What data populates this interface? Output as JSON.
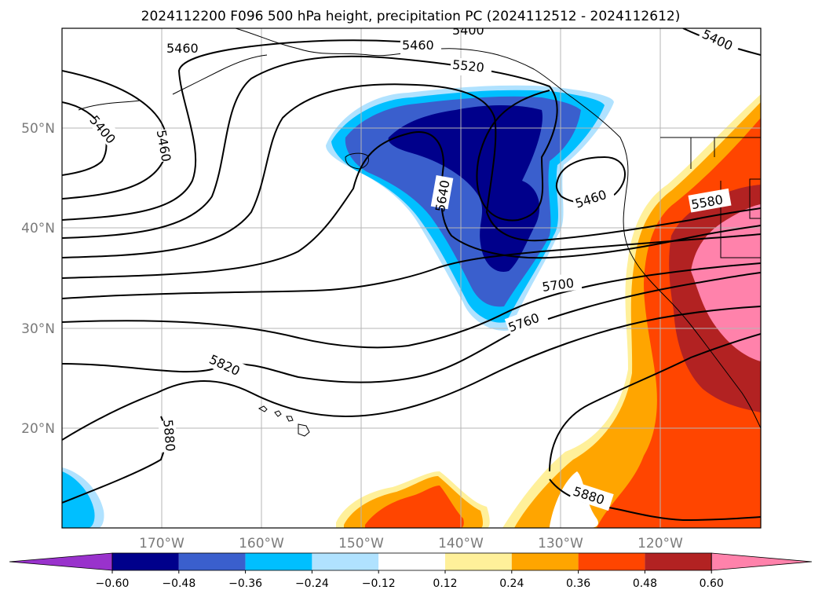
{
  "title": "2024112200 F096 500 hPa height, precipitation PC (2024112512 - 2024112612)",
  "lat_labels": [
    "20°N",
    "30°N",
    "40°N",
    "50°N"
  ],
  "lon_labels": [
    "170°W",
    "160°W",
    "150°W",
    "140°W",
    "130°W",
    "120°W"
  ],
  "colorbar": {
    "ticks": [
      "−0.60",
      "−0.48",
      "−0.36",
      "−0.24",
      "−0.12",
      "0.12",
      "0.24",
      "0.36",
      "0.48",
      "0.60"
    ],
    "colors": [
      "#9932cc",
      "#00008b",
      "#3a5fcd",
      "#00bfff",
      "#b0e2ff",
      "#ffffff",
      "#fff09a",
      "#ffa500",
      "#ff4500",
      "#b22222",
      "#ff82ab"
    ]
  },
  "contour_labels": [
    "5400",
    "5460",
    "5460",
    "5520",
    "5400",
    "5400",
    "5460",
    "5460",
    "5580",
    "5640",
    "5700",
    "5760",
    "5820",
    "5880",
    "5880"
  ]
}
